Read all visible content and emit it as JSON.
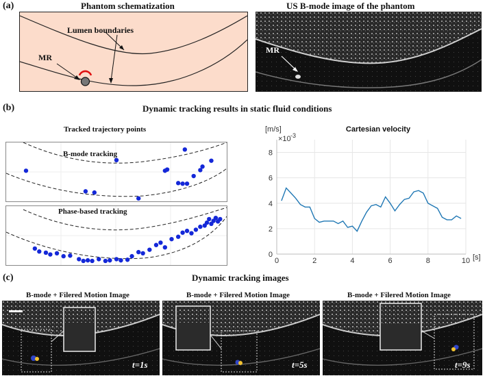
{
  "panels": {
    "a": {
      "label": "(a)",
      "schematic_title": "Phantom schematization",
      "lumen_label": "Lumen boundaries",
      "mr_label": "MR",
      "us_title": "US B-mode image of the phantom",
      "us_mr_label": "MR"
    },
    "b": {
      "label": "(b)",
      "title": "Dynamic tracking results in static fluid conditions",
      "trajectory_title": "Tracked trajectory points",
      "bmode_label": "B-mode tracking",
      "phase_label": "Phase-based tracking",
      "velocity_title": "Cartesian velocity"
    },
    "c": {
      "label": "(c)",
      "title": "Dynamic tracking images",
      "frames": [
        {
          "caption": "B-mode + Filered Motion Image",
          "time": "t=1s"
        },
        {
          "caption": "B-mode + Filered Motion Image",
          "time": "t=5s"
        },
        {
          "caption": "B-mode + Filered Motion Image",
          "time": "t=9s"
        }
      ]
    }
  },
  "chart_data": {
    "type": "line",
    "title": "Cartesian velocity",
    "ylabel": "[m/s]",
    "xlabel": "[s]",
    "y_multiplier": "×10",
    "y_exponent": "-3",
    "xlim": [
      0,
      10
    ],
    "ylim": [
      0,
      9
    ],
    "xticks": [
      0,
      2,
      4,
      6,
      8,
      10
    ],
    "yticks": [
      0,
      2,
      4,
      6,
      8
    ],
    "grid": true,
    "series": [
      {
        "name": "velocity",
        "color": "#1f77b4",
        "x": [
          0.25,
          0.5,
          0.75,
          1.0,
          1.25,
          1.5,
          1.75,
          2.0,
          2.25,
          2.5,
          2.75,
          3.0,
          3.25,
          3.5,
          3.75,
          4.0,
          4.25,
          4.5,
          4.75,
          5.0,
          5.25,
          5.5,
          5.75,
          6.0,
          6.25,
          6.5,
          6.75,
          7.0,
          7.25,
          7.5,
          7.75,
          8.0,
          8.25,
          8.5,
          8.75,
          9.0,
          9.25,
          9.5,
          9.75
        ],
        "y": [
          4.2,
          5.2,
          4.8,
          4.4,
          3.9,
          3.7,
          3.7,
          2.8,
          2.5,
          2.6,
          2.6,
          2.6,
          2.4,
          2.6,
          2.1,
          2.2,
          1.8,
          2.6,
          3.3,
          3.8,
          3.9,
          3.7,
          4.5,
          4.0,
          3.4,
          3.9,
          4.3,
          4.4,
          4.9,
          5.0,
          4.8,
          4.0,
          3.8,
          3.6,
          2.9,
          2.7,
          2.7,
          3.0,
          2.8
        ]
      }
    ]
  },
  "trajectory_points": {
    "bmode": [
      [
        0.09,
        0.48
      ],
      [
        0.36,
        0.83
      ],
      [
        0.4,
        0.85
      ],
      [
        0.5,
        0.3
      ],
      [
        0.6,
        0.95
      ],
      [
        0.72,
        0.48
      ],
      [
        0.73,
        0.46
      ],
      [
        0.78,
        0.69
      ],
      [
        0.8,
        0.7
      ],
      [
        0.81,
        0.12
      ],
      [
        0.82,
        0.7
      ],
      [
        0.85,
        0.57
      ],
      [
        0.88,
        0.47
      ],
      [
        0.89,
        0.41
      ],
      [
        0.93,
        0.31
      ]
    ],
    "phase": [
      [
        0.13,
        0.72
      ],
      [
        0.15,
        0.77
      ],
      [
        0.18,
        0.79
      ],
      [
        0.2,
        0.82
      ],
      [
        0.23,
        0.8
      ],
      [
        0.26,
        0.85
      ],
      [
        0.29,
        0.84
      ],
      [
        0.33,
        0.9
      ],
      [
        0.35,
        0.93
      ],
      [
        0.37,
        0.92
      ],
      [
        0.39,
        0.93
      ],
      [
        0.42,
        0.9
      ],
      [
        0.45,
        0.93
      ],
      [
        0.47,
        0.92
      ],
      [
        0.5,
        0.9
      ],
      [
        0.52,
        0.92
      ],
      [
        0.55,
        0.91
      ],
      [
        0.57,
        0.85
      ],
      [
        0.6,
        0.78
      ],
      [
        0.62,
        0.8
      ],
      [
        0.65,
        0.74
      ],
      [
        0.68,
        0.66
      ],
      [
        0.7,
        0.62
      ],
      [
        0.72,
        0.7
      ],
      [
        0.75,
        0.56
      ],
      [
        0.78,
        0.52
      ],
      [
        0.8,
        0.45
      ],
      [
        0.82,
        0.42
      ],
      [
        0.84,
        0.46
      ],
      [
        0.86,
        0.4
      ],
      [
        0.88,
        0.35
      ],
      [
        0.9,
        0.33
      ],
      [
        0.91,
        0.28
      ],
      [
        0.92,
        0.22
      ],
      [
        0.93,
        0.3
      ],
      [
        0.94,
        0.25
      ],
      [
        0.95,
        0.2
      ],
      [
        0.96,
        0.26
      ],
      [
        0.97,
        0.22
      ]
    ]
  }
}
